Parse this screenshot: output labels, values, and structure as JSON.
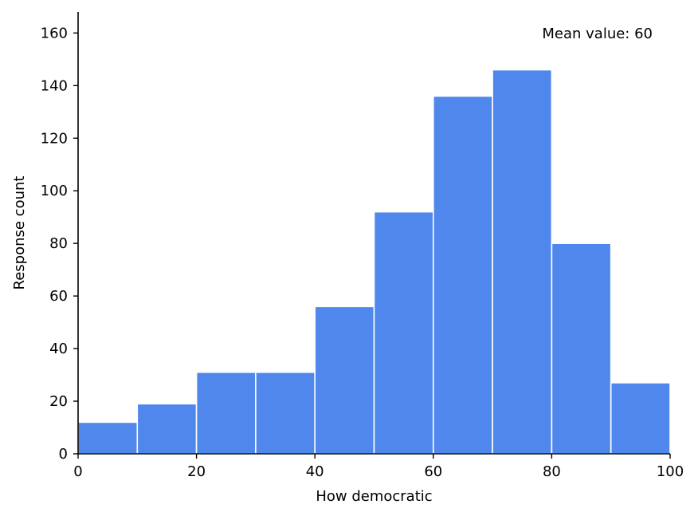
{
  "chart_data": {
    "type": "bar",
    "histogram": true,
    "bin_edges": [
      0,
      10,
      20,
      30,
      40,
      50,
      60,
      70,
      80,
      90,
      100
    ],
    "values": [
      12,
      19,
      31,
      31,
      56,
      92,
      136,
      146,
      80,
      27
    ],
    "xlabel": "How democratic",
    "ylabel": "Response count",
    "xlim": [
      0,
      100
    ],
    "ylim": [
      0,
      168
    ],
    "xticks": [
      0,
      20,
      40,
      60,
      80,
      100
    ],
    "yticks": [
      0,
      20,
      40,
      60,
      80,
      100,
      120,
      140,
      160
    ],
    "annotation": "Mean value: 60",
    "bar_color": "#5087ec",
    "bar_edge_color": "#ffffff",
    "grid": false,
    "spines": [
      "left",
      "bottom"
    ]
  }
}
